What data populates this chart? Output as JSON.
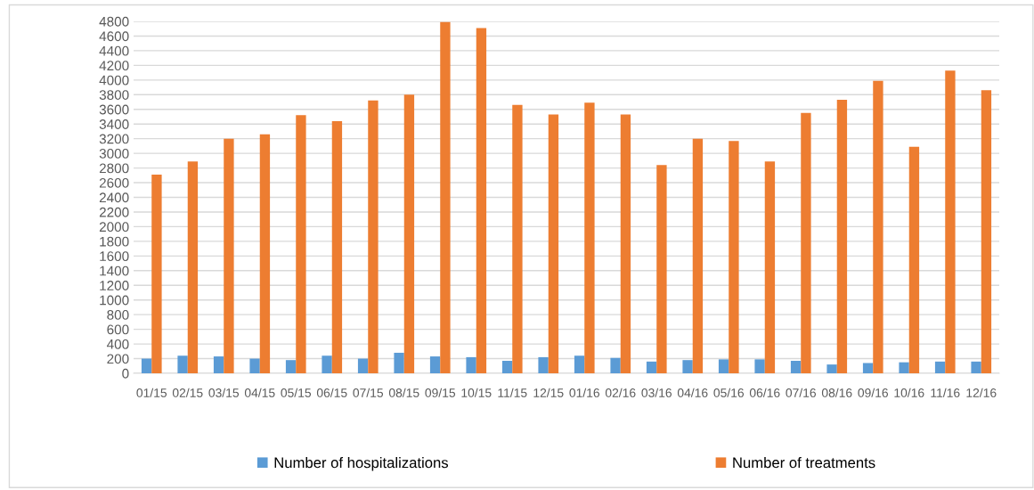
{
  "chart_data": {
    "type": "bar",
    "categories": [
      "01/15",
      "02/15",
      "03/15",
      "04/15",
      "05/15",
      "06/15",
      "07/15",
      "08/15",
      "09/15",
      "10/15",
      "11/15",
      "12/15",
      "01/16",
      "02/16",
      "03/16",
      "04/16",
      "05/16",
      "06/16",
      "07/16",
      "08/16",
      "09/16",
      "10/16",
      "11/16",
      "12/16"
    ],
    "series": [
      {
        "name": "Number of hospitalizations",
        "color": "#5b9bd5",
        "values": [
          200,
          240,
          230,
          200,
          180,
          240,
          200,
          280,
          230,
          220,
          170,
          220,
          240,
          210,
          160,
          180,
          190,
          190,
          170,
          120,
          140,
          150,
          160,
          160
        ]
      },
      {
        "name": "Number of treatments",
        "color": "#ed7d31",
        "values": [
          2710,
          2890,
          3200,
          3260,
          3520,
          3440,
          3720,
          3800,
          4790,
          4710,
          3660,
          3530,
          3690,
          3530,
          2840,
          3200,
          3170,
          2890,
          3550,
          3730,
          3990,
          3090,
          4130,
          3860
        ]
      }
    ],
    "ylim": [
      0,
      4800
    ],
    "yticks": [
      0,
      200,
      400,
      600,
      800,
      1000,
      1200,
      1400,
      1600,
      1800,
      2000,
      2200,
      2400,
      2600,
      2800,
      3000,
      3200,
      3400,
      3600,
      3800,
      4000,
      4200,
      4400,
      4600,
      4800
    ],
    "grid": "y",
    "legend": "bottom"
  }
}
